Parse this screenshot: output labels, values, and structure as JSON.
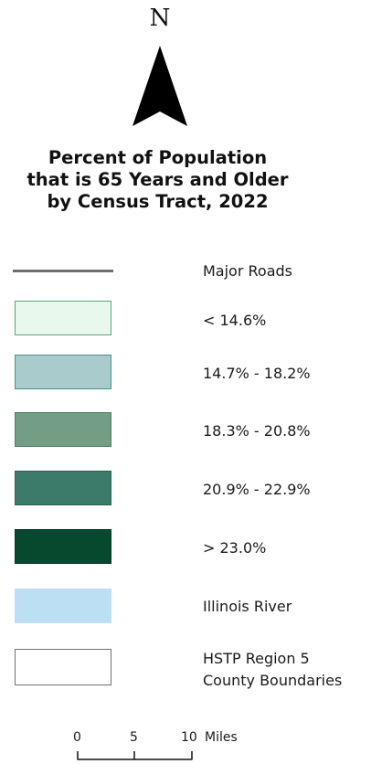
{
  "north_arrow": {
    "letter": "N",
    "icon": "north-arrow-icon"
  },
  "title": {
    "line1": "Percent of Population",
    "line2": "that is 65 Years and Older",
    "line3": "by Census Tract, 2022"
  },
  "legend": {
    "major_roads": {
      "label": "Major Roads",
      "color": "#6f6f6f"
    },
    "classes": [
      {
        "label": "< 14.6%",
        "fill": "#e8f8ec",
        "border": "#5aa37a"
      },
      {
        "label": "14.7% - 18.2%",
        "fill": "#a9cbcc",
        "border": "#4e8f86"
      },
      {
        "label": "18.3% - 20.8%",
        "fill": "#739d84",
        "border": "#4d7d62"
      },
      {
        "label": "20.9% - 22.9%",
        "fill": "#3c7a69",
        "border": "#2c6354"
      },
      {
        "label": "> 23.0%",
        "fill": "#06492f",
        "border": "#033522"
      }
    ],
    "river": {
      "label": "Illinois River",
      "fill": "#bddff4"
    },
    "boundaries": {
      "line1": "HSTP Region 5",
      "line2": "County Boundaries",
      "fill": "#ffffff",
      "border": "#6f6f6f"
    }
  },
  "scale_bar": {
    "ticks": [
      "0",
      "5",
      "10"
    ],
    "unit": "Miles"
  }
}
